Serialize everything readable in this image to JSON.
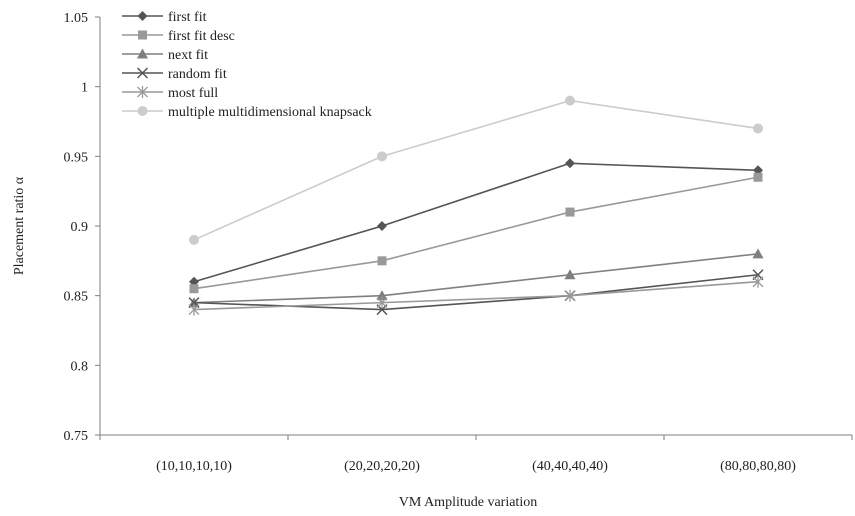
{
  "chart_data": {
    "type": "line",
    "title": "",
    "xlabel": "VM Amplitude variation",
    "ylabel": "Placement ratio α",
    "categories": [
      "(10,10,10,10)",
      "(20,20,20,20)",
      "(40,40,40,40)",
      "(80,80,80,80)"
    ],
    "ylim": [
      0.75,
      1.05
    ],
    "yticks": [
      "0.75",
      "0.8",
      "0.85",
      "0.9",
      "0.95",
      "1",
      "1.05"
    ],
    "grid": false,
    "legend_position": "top-left",
    "series": [
      {
        "name": "first fit",
        "marker": "diamond",
        "color": "#555555",
        "values": [
          0.86,
          0.9,
          0.945,
          0.94
        ]
      },
      {
        "name": "first fit desc",
        "marker": "square",
        "color": "#999999",
        "values": [
          0.855,
          0.875,
          0.91,
          0.935
        ]
      },
      {
        "name": "next fit",
        "marker": "triangle",
        "color": "#7f7f7f",
        "values": [
          0.845,
          0.85,
          0.865,
          0.88
        ]
      },
      {
        "name": "random fit",
        "marker": "x",
        "color": "#555555",
        "values": [
          0.845,
          0.84,
          0.85,
          0.865
        ]
      },
      {
        "name": "most full",
        "marker": "star",
        "color": "#999999",
        "values": [
          0.84,
          0.845,
          0.85,
          0.86
        ]
      },
      {
        "name": "multiple multidimensional knapsack",
        "marker": "circle",
        "color": "#cccccc",
        "values": [
          0.89,
          0.95,
          0.99,
          0.97
        ]
      }
    ]
  }
}
